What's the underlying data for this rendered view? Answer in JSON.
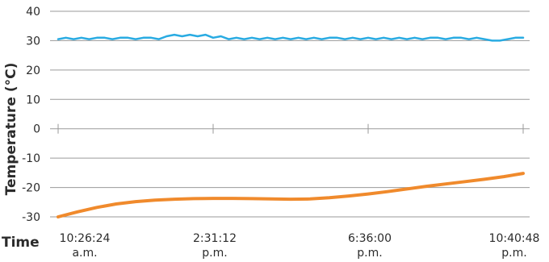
{
  "chart_data": {
    "type": "line",
    "title": "",
    "ylabel": "Temperature (°C)",
    "xlabel": "Time",
    "ylim": [
      -30,
      40
    ],
    "yticks": [
      40,
      30,
      20,
      10,
      0,
      -10,
      -20,
      -30
    ],
    "xticks": [
      {
        "time": "10:26:24",
        "period": "a.m."
      },
      {
        "time": "2:31:12",
        "period": "p.m."
      },
      {
        "time": "6:36:00",
        "period": "p.m."
      },
      {
        "time": "10:40:48",
        "period": "p.m."
      }
    ],
    "grid": true,
    "series": [
      {
        "color": "#29abe2",
        "x_hours": [
          0,
          0.2,
          0.4,
          0.6,
          0.8,
          1.0,
          1.2,
          1.4,
          1.6,
          1.8,
          2.0,
          2.2,
          2.4,
          2.6,
          2.8,
          3.0,
          3.2,
          3.4,
          3.6,
          3.8,
          4.0,
          4.2,
          4.4,
          4.6,
          4.8,
          5.0,
          5.2,
          5.4,
          5.6,
          5.8,
          6.0,
          6.2,
          6.4,
          6.6,
          6.8,
          7.0,
          7.2,
          7.4,
          7.6,
          7.8,
          8.0,
          8.2,
          8.4,
          8.6,
          8.8,
          9.0,
          9.2,
          9.4,
          9.6,
          9.8,
          10.0,
          10.2,
          10.4,
          10.6,
          10.8,
          11.0,
          11.2,
          11.4,
          11.6,
          11.8,
          12.0
        ],
        "values": [
          30.5,
          31.0,
          30.5,
          31.0,
          30.5,
          31.0,
          31.0,
          30.5,
          31.0,
          31.0,
          30.5,
          31.0,
          31.0,
          30.5,
          31.5,
          32.0,
          31.5,
          32.0,
          31.5,
          32.0,
          31.0,
          31.5,
          30.5,
          31.0,
          30.5,
          31.0,
          30.5,
          31.0,
          30.5,
          31.0,
          30.5,
          31.0,
          30.5,
          31.0,
          30.5,
          31.0,
          31.0,
          30.5,
          31.0,
          30.5,
          31.0,
          30.5,
          31.0,
          30.5,
          31.0,
          30.5,
          31.0,
          30.5,
          31.0,
          31.0,
          30.5,
          31.0,
          31.0,
          30.5,
          31.0,
          30.5,
          30.0,
          30.0,
          30.5,
          31.0,
          31.0
        ]
      },
      {
        "color": "#f08a2c",
        "x_hours": [
          0,
          0.5,
          1,
          1.5,
          2,
          2.5,
          3,
          3.5,
          4,
          4.5,
          5,
          5.5,
          6,
          6.5,
          7,
          7.5,
          8,
          8.5,
          9,
          9.5,
          10,
          10.5,
          11,
          11.5,
          12
        ],
        "values": [
          -30,
          -28.3,
          -26.8,
          -25.6,
          -24.8,
          -24.3,
          -24.0,
          -23.8,
          -23.7,
          -23.7,
          -23.8,
          -23.9,
          -24.0,
          -23.9,
          -23.5,
          -22.9,
          -22.2,
          -21.4,
          -20.5,
          -19.6,
          -18.8,
          -18.0,
          -17.2,
          -16.3,
          -15.2
        ]
      }
    ]
  }
}
